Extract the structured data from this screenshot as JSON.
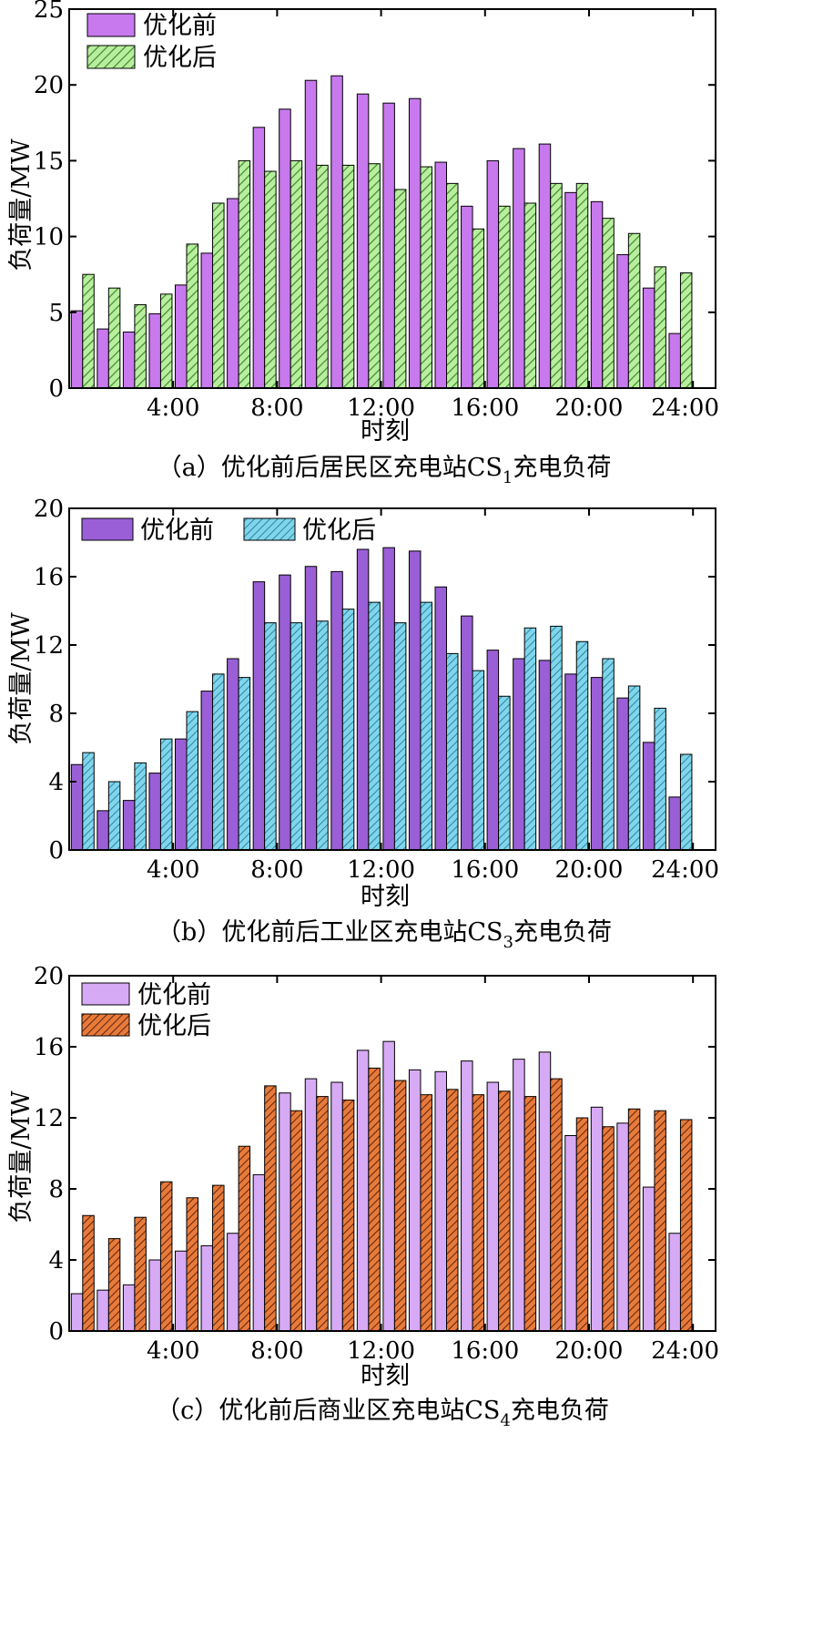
{
  "colors": {
    "a_before": "#c879ee",
    "a_after_fill": "#b9ee9f",
    "a_after_hatch": "#3d8a2a",
    "b_before": "#9a5fd6",
    "b_after_fill": "#7fd6ec",
    "b_after_hatch": "#1d6e88",
    "c_before": "#d7aaf5",
    "c_after_fill": "#e87a3a",
    "c_after_hatch": "#5a2410"
  },
  "chart_data": [
    {
      "type": "bar",
      "caption_main": "（a）优化前后居民区充电站CS",
      "caption_sub": "1",
      "caption_tail": "充电负荷",
      "xlabel": "时刻",
      "ylabel": "负荷量/MW",
      "ylim": [
        0,
        25
      ],
      "yticks": [
        "0",
        "5",
        "10",
        "15",
        "20",
        "25"
      ],
      "xtick_labels": [
        "4:00",
        "8:00",
        "12:00",
        "16:00",
        "20:00",
        "24:00"
      ],
      "legend_position": "top-left",
      "grid": false,
      "series": [
        {
          "name": "优化前",
          "values": [
            5.1,
            3.9,
            3.7,
            4.9,
            6.8,
            8.9,
            12.5,
            17.2,
            18.4,
            20.3,
            20.6,
            19.4,
            18.8,
            19.1,
            14.9,
            12.0,
            15.0,
            15.8,
            16.1,
            12.9,
            12.3,
            8.8,
            6.6,
            3.6
          ]
        },
        {
          "name": "优化后",
          "values": [
            7.5,
            6.6,
            5.5,
            6.2,
            9.5,
            12.2,
            15.0,
            14.3,
            15.0,
            14.7,
            14.7,
            14.8,
            13.1,
            14.6,
            13.5,
            10.5,
            12.0,
            12.2,
            13.5,
            13.5,
            11.2,
            10.2,
            8.0,
            7.6
          ]
        }
      ]
    },
    {
      "type": "bar",
      "caption_main": "（b）优化前后工业区充电站CS",
      "caption_sub": "3",
      "caption_tail": "充电负荷",
      "xlabel": "时刻",
      "ylabel": "负荷量/MW",
      "ylim": [
        0,
        20
      ],
      "yticks": [
        "0",
        "4",
        "8",
        "12",
        "16",
        "20"
      ],
      "xtick_labels": [
        "4:00",
        "8:00",
        "12:00",
        "16:00",
        "20:00",
        "24:00"
      ],
      "legend_position": "top-left",
      "grid": false,
      "series": [
        {
          "name": "优化前",
          "values": [
            5.0,
            2.3,
            2.9,
            4.5,
            6.5,
            9.3,
            11.2,
            15.7,
            16.1,
            16.6,
            16.3,
            17.6,
            17.7,
            17.5,
            15.4,
            13.7,
            11.7,
            11.2,
            11.1,
            10.3,
            10.1,
            8.9,
            6.3,
            3.1
          ]
        },
        {
          "name": "优化后",
          "values": [
            5.7,
            4.0,
            5.1,
            6.5,
            8.1,
            10.3,
            10.1,
            13.3,
            13.3,
            13.4,
            14.1,
            14.5,
            13.3,
            14.5,
            11.5,
            10.5,
            9.0,
            13.0,
            13.1,
            12.2,
            11.2,
            9.6,
            8.3,
            5.6
          ]
        }
      ]
    },
    {
      "type": "bar",
      "caption_main": "（c）优化前后商业区充电站CS",
      "caption_sub": "4",
      "caption_tail": "充电负荷",
      "xlabel": "时刻",
      "ylabel": "负荷量/MW",
      "ylim": [
        0,
        20
      ],
      "yticks": [
        "0",
        "4",
        "8",
        "12",
        "16",
        "20"
      ],
      "xtick_labels": [
        "4:00",
        "8:00",
        "12:00",
        "16:00",
        "20:00",
        "24:00"
      ],
      "legend_position": "top-left",
      "grid": false,
      "series": [
        {
          "name": "优化前",
          "values": [
            2.1,
            2.3,
            2.6,
            4.0,
            4.5,
            4.8,
            5.5,
            8.8,
            13.4,
            14.2,
            14.0,
            15.8,
            16.3,
            14.7,
            14.6,
            15.2,
            14.0,
            15.3,
            15.7,
            11.0,
            12.6,
            11.7,
            8.1,
            5.5
          ]
        },
        {
          "name": "优化后",
          "values": [
            6.5,
            5.2,
            6.4,
            8.4,
            7.5,
            8.2,
            10.4,
            13.8,
            12.4,
            13.2,
            13.0,
            14.8,
            14.1,
            13.3,
            13.6,
            13.3,
            13.5,
            13.2,
            14.2,
            12.0,
            11.5,
            12.5,
            12.4,
            11.9
          ]
        }
      ]
    }
  ]
}
